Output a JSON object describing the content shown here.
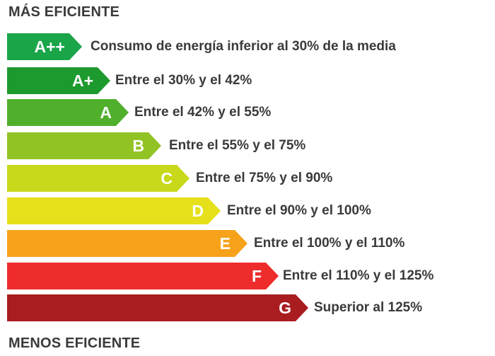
{
  "headings": {
    "top": "MÁS EFICIENTE",
    "bottom": "MENOS EFICIENTE"
  },
  "classes": [
    {
      "grade": "A++",
      "description": "Consumo de energía inferior al 30% de la media",
      "color": "#1aa548"
    },
    {
      "grade": "A+",
      "description": "Entre el 30% y el 42%",
      "color": "#1d9a2e"
    },
    {
      "grade": "A",
      "description": "Entre el 42% y el 55%",
      "color": "#50b02c"
    },
    {
      "grade": "B",
      "description": "Entre el 55% y el 75%",
      "color": "#92c325"
    },
    {
      "grade": "C",
      "description": "Entre el 75% y el 90%",
      "color": "#c8d81a"
    },
    {
      "grade": "D",
      "description": "Entre el 90% y el 100%",
      "color": "#e6e01a"
    },
    {
      "grade": "E",
      "description": "Entre el 100% y el 110%",
      "color": "#f7a21b"
    },
    {
      "grade": "F",
      "description": "Entre el 110% y el 125%",
      "color": "#ee2c2c"
    },
    {
      "grade": "G",
      "description": "Superior al 125%",
      "color": "#a91c1f"
    }
  ]
}
